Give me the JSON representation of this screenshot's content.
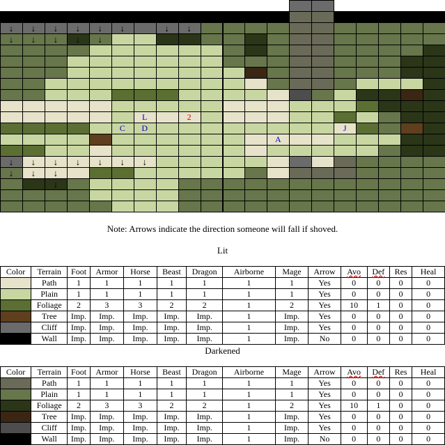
{
  "colors": {
    "o": "#ffffff",
    "W": "#000000",
    "p": "#e6e3ca",
    "g": "#c8d7a2",
    "f": "#5b6f33",
    "t": "#5f3f1e",
    "c": "#6b6b6b",
    "P": "#6a6a58",
    "G": "#67764b",
    "F": "#2b3518",
    "T": "#3b2614",
    "C": "#4d4d4d"
  },
  "map": {
    "rows": [
      "oooooooooooooccoooooo",
      "WWWWWWWWWWWWWPPWWWWWW",
      "cccccccccGGGGPPGGGGGG",
      "GGGFGggFFGGFGPPGGGGGG",
      "GGGGggggggGFGPPGGGGFG",
      "GGGgggggggGGGPPGGGFFF",
      "GGGggggggggTGPPGGGFFF",
      "GGgggggggggpGPPGgggFF",
      "GGgggfffggggpCGgFFTFF",
      "pppppgggggpppgggfFFFF",
      "pppppgpppgpppggfgGFFF",
      "ffffgggggggggggpfGtFF",
      "ggggtggggggppppgggFFF",
      "ffggpggggggpgggggGFFF",
      "cppppppgggggpcpPGGGGG",
      "GpppffgggggGpPPPGGGGG",
      "GFFGggggGGGGGGGGGGGGG",
      "GGGGggggGGGGGGGGGGGGG",
      "GGGGGgggGGGGGGGGGGGGG"
    ]
  },
  "labels": [
    {
      "text": "L",
      "row": 9,
      "col": 6,
      "color": "#0000cc"
    },
    {
      "text": "2",
      "row": 9,
      "col": 8,
      "color": "#dd0000"
    },
    {
      "text": "C",
      "row": 10,
      "col": 5,
      "color": "#0000cc"
    },
    {
      "text": "D",
      "row": 10,
      "col": 6,
      "color": "#0000cc"
    },
    {
      "text": "J",
      "row": 10,
      "col": 15,
      "color": "#0000cc"
    },
    {
      "text": "A",
      "row": 11,
      "col": 12,
      "color": "#0000cc"
    }
  ],
  "arrows": {
    "glyph": "↓",
    "cells": [
      [
        0,
        0
      ],
      [
        0,
        1
      ],
      [
        0,
        2
      ],
      [
        0,
        3
      ],
      [
        0,
        4
      ],
      [
        0,
        5
      ],
      [
        0,
        6
      ],
      [
        0,
        7
      ],
      [
        0,
        8
      ],
      [
        0,
        9
      ],
      [
        0,
        10
      ],
      [
        0,
        18
      ],
      [
        0,
        19
      ],
      [
        1,
        0
      ],
      [
        1,
        1
      ],
      [
        1,
        2
      ],
      [
        1,
        3
      ],
      [
        1,
        4
      ],
      [
        1,
        5
      ],
      [
        1,
        7
      ],
      [
        1,
        8
      ],
      [
        2,
        0
      ],
      [
        2,
        1
      ],
      [
        2,
        2
      ],
      [
        2,
        3
      ],
      [
        2,
        4
      ],
      [
        13,
        0
      ],
      [
        13,
        1
      ],
      [
        13,
        2
      ],
      [
        13,
        3
      ],
      [
        13,
        4
      ],
      [
        13,
        5
      ],
      [
        13,
        6
      ],
      [
        14,
        0
      ],
      [
        14,
        1
      ],
      [
        14,
        2
      ],
      [
        15,
        2
      ]
    ]
  },
  "note": "Note: Arrows indicate the direction someone will fall if shoved.",
  "lit": {
    "caption": "Lit",
    "headers": [
      "Color",
      "Terrain",
      "Foot",
      "Armor",
      "Horse",
      "Beast",
      "Dragon",
      "Airborne",
      "Mage",
      "Arrow",
      "Avo",
      "Def",
      "Res",
      "Heal"
    ],
    "rows": [
      {
        "swatch": "p",
        "cells": [
          "Path",
          "1",
          "1",
          "1",
          "1",
          "1",
          "1",
          "1",
          "Yes",
          "0",
          "0",
          "0",
          "0"
        ]
      },
      {
        "swatch": "g",
        "cells": [
          "Plain",
          "1",
          "1",
          "1",
          "1",
          "1",
          "1",
          "1",
          "Yes",
          "0",
          "0",
          "0",
          "0"
        ]
      },
      {
        "swatch": "f",
        "cells": [
          "Foliage",
          "2",
          "3",
          "3",
          "2",
          "2",
          "1",
          "2",
          "Yes",
          "10",
          "1",
          "0",
          "0"
        ]
      },
      {
        "swatch": "t",
        "cells": [
          "Tree",
          "Imp.",
          "Imp.",
          "Imp.",
          "Imp.",
          "Imp.",
          "1",
          "Imp.",
          "Yes",
          "0",
          "0",
          "0",
          "0"
        ]
      },
      {
        "swatch": "c",
        "cells": [
          "Cliff",
          "Imp.",
          "Imp.",
          "Imp.",
          "Imp.",
          "Imp.",
          "1",
          "Imp.",
          "Yes",
          "0",
          "0",
          "0",
          "0"
        ]
      },
      {
        "swatch": "W",
        "cells": [
          "Wall",
          "Imp.",
          "Imp.",
          "Imp.",
          "Imp.",
          "Imp.",
          "1",
          "Imp.",
          "No",
          "0",
          "0",
          "0",
          "0"
        ]
      }
    ]
  },
  "darkened": {
    "caption": "Darkened",
    "headers": [
      "Color",
      "Terrain",
      "Foot",
      "Armor",
      "Horse",
      "Beast",
      "Dragon",
      "Airborne",
      "Mage",
      "Arrow",
      "Avo",
      "Def",
      "Res",
      "Heal"
    ],
    "rows": [
      {
        "swatch": "P",
        "cells": [
          "Path",
          "1",
          "1",
          "1",
          "1",
          "1",
          "1",
          "1",
          "Yes",
          "0",
          "0",
          "0",
          "0"
        ]
      },
      {
        "swatch": "G",
        "cells": [
          "Plain",
          "1",
          "1",
          "1",
          "1",
          "1",
          "1",
          "1",
          "Yes",
          "0",
          "0",
          "0",
          "0"
        ]
      },
      {
        "swatch": "F",
        "cells": [
          "Foliage",
          "2",
          "3",
          "3",
          "2",
          "2",
          "1",
          "2",
          "Yes",
          "10",
          "1",
          "0",
          "0"
        ]
      },
      {
        "swatch": "T",
        "cells": [
          "Tree",
          "Imp.",
          "Imp.",
          "Imp.",
          "Imp.",
          "Imp.",
          "1",
          "Imp.",
          "Yes",
          "0",
          "0",
          "0",
          "0"
        ]
      },
      {
        "swatch": "C",
        "cells": [
          "Cliff",
          "Imp.",
          "Imp.",
          "Imp.",
          "Imp.",
          "Imp.",
          "1",
          "Imp.",
          "Yes",
          "0",
          "0",
          "0",
          "0"
        ]
      },
      {
        "swatch": "W",
        "cells": [
          "Wall",
          "Imp.",
          "Imp.",
          "Imp.",
          "Imp.",
          "Imp.",
          "1",
          "Imp.",
          "No",
          "0",
          "0",
          "0",
          "0"
        ]
      }
    ]
  }
}
